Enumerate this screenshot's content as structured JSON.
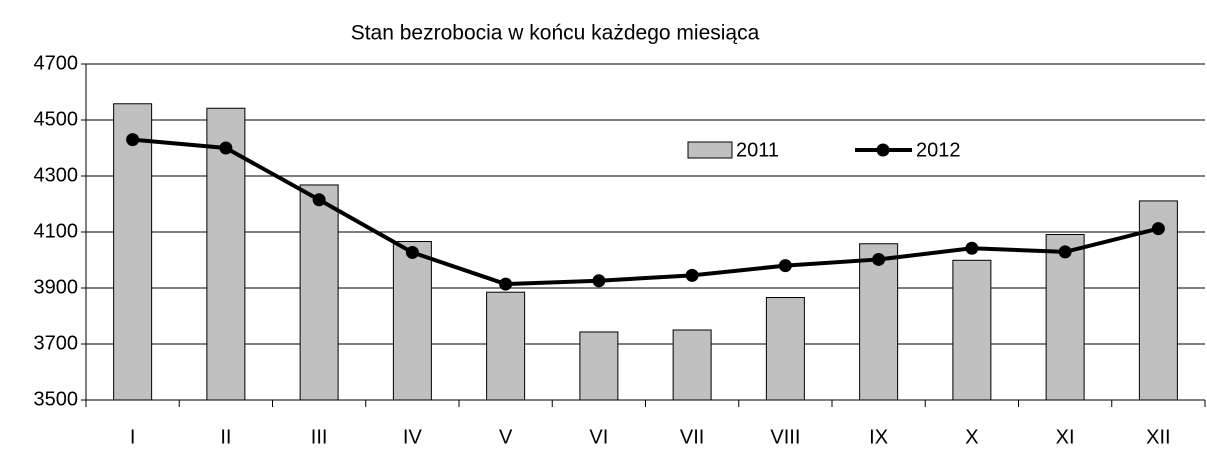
{
  "chart_data": {
    "type": "bar",
    "title": "Stan bezrobocia w końcu każdego miesiąca",
    "categories": [
      "I",
      "II",
      "III",
      "IV",
      "V",
      "VI",
      "VII",
      "VIII",
      "IX",
      "X",
      "XI",
      "XII"
    ],
    "series": [
      {
        "name": "2011",
        "type": "bar",
        "color": "#c0c0c0",
        "values": [
          4558,
          4542,
          4268,
          4066,
          3885,
          3743,
          3750,
          3866,
          4058,
          3999,
          4091,
          4211
        ]
      },
      {
        "name": "2012",
        "type": "line",
        "color": "#000000",
        "values": [
          4430,
          4400,
          4215,
          4027,
          3914,
          3926,
          3945,
          3980,
          4002,
          4042,
          4029,
          4112
        ]
      }
    ],
    "ylim": [
      3500,
      4700
    ],
    "yticks": [
      3500,
      3700,
      3900,
      4100,
      4300,
      4500,
      4700
    ],
    "grid": true,
    "legend": "inside"
  }
}
